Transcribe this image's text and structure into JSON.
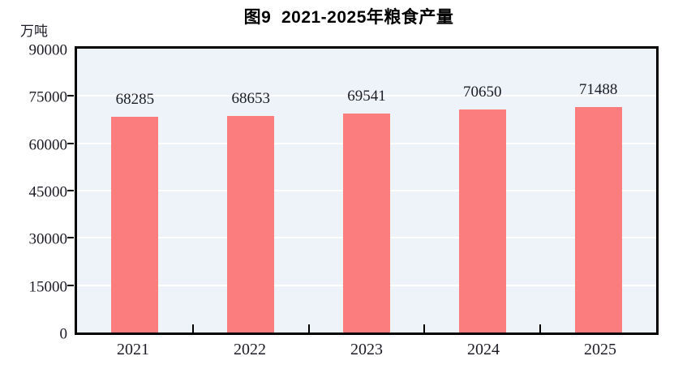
{
  "figure": {
    "caption_number": "图9",
    "caption_text": "2021-2025年粮食产量"
  },
  "chart_data": {
    "type": "bar",
    "title": "图9  2021-2025年粮食产量",
    "categories": [
      "2021",
      "2022",
      "2023",
      "2024",
      "2025"
    ],
    "values": [
      68285,
      68653,
      69541,
      70650,
      71488
    ],
    "data_labels": [
      "68285",
      "68653",
      "69541",
      "70650",
      "71488"
    ],
    "xlabel": "",
    "ylabel": "万吨",
    "ylim": [
      0,
      90000
    ],
    "yticks": [
      0,
      15000,
      30000,
      45000,
      60000,
      75000,
      90000
    ],
    "grid": true,
    "legend": "none",
    "colors": {
      "bar": "#fc7d7d",
      "plot_background": "#edf3f8",
      "gridline": "#ffffff",
      "axis": "#000000",
      "text": "#1c1c26",
      "title_text": "#000000"
    }
  }
}
